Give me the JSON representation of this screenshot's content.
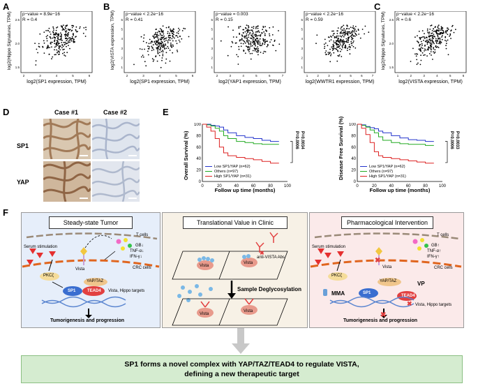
{
  "panels": {
    "A": "A",
    "B": "B",
    "C": "C",
    "D": "D",
    "E": "E",
    "F": "F"
  },
  "scatter": [
    {
      "id": "A1",
      "p": "p−value = 8.9e−16",
      "r": "R = 0.4",
      "xlabel": "log2(SP1 expression, TPM)",
      "ylabel": "log2(Hippo Signatures, TPM)",
      "xticks": [
        "2",
        "3",
        "4",
        "5",
        "6"
      ],
      "yticks": [
        "1.5",
        "2.0",
        "2.5"
      ]
    },
    {
      "id": "B1",
      "p": "p−value < 2.2e−16",
      "r": "R = 0.41",
      "xlabel": "log2(SP1 expression, TPM)",
      "ylabel": "log2(VISTA expression, TPM)",
      "xticks": [
        "2",
        "3",
        "4",
        "5",
        "6"
      ],
      "yticks": [
        "1",
        "2",
        "3",
        "4",
        "5",
        "6"
      ]
    },
    {
      "id": "B2",
      "p": "p−value = 0.003",
      "r": "R = 0.15",
      "xlabel": "log2(YAP1 expression, TPM)",
      "ylabel": "",
      "xticks": [
        "2",
        "3",
        "4",
        "5",
        "6",
        "7"
      ],
      "yticks": [
        "1",
        "2",
        "3",
        "4",
        "5",
        "6"
      ]
    },
    {
      "id": "B3",
      "p": "p−value < 2.2e−16",
      "r": "R = 0.59",
      "xlabel": "log2(WWTR1 expression, TPM)",
      "ylabel": "",
      "xticks": [
        "1",
        "2",
        "3",
        "4",
        "5",
        "6",
        "7"
      ],
      "yticks": [
        "1",
        "2",
        "3",
        "4",
        "5",
        "6"
      ]
    },
    {
      "id": "C1",
      "p": "p−value < 2.2e−16",
      "r": "R = 0.6",
      "xlabel": "log2(VISTA expression, TPM)",
      "ylabel": "log2(Hippo Signatures, TPM)",
      "xticks": [
        "1",
        "2",
        "3",
        "4",
        "5",
        "6"
      ],
      "yticks": [
        "1.5",
        "2.0",
        "2.5"
      ]
    }
  ],
  "ihc": {
    "case1": "Case #1",
    "case2": "Case #2",
    "row1": "SP1",
    "row2": "YAP"
  },
  "km": [
    {
      "ylabel": "Overall Survival (%)",
      "xlabel": "Follow up time (months)",
      "pvals": [
        "P=0.0006",
        "P=0.0034"
      ]
    },
    {
      "ylabel": "Disease Free Survival (%)",
      "xlabel": "Follow up time (months)",
      "pvals": [
        "P=0.0006",
        "P=0.0033"
      ]
    }
  ],
  "km_legend": [
    "Low SP1/YAP (n=62)",
    "Others (n=97)",
    "High SP1/YAP (n=31)"
  ],
  "km_xticks": [
    "0",
    "20",
    "40",
    "60",
    "80",
    "100"
  ],
  "km_yticks": [
    "0",
    "20",
    "40",
    "60",
    "80",
    "100"
  ],
  "chart_data": [
    {
      "type": "scatter",
      "title": "A",
      "xlabel": "log2(SP1 expression, TPM)",
      "ylabel": "log2(Hippo Signatures, TPM)",
      "r": 0.4,
      "xlim": [
        2,
        6
      ],
      "ylim": [
        1.2,
        2.8
      ]
    },
    {
      "type": "scatter",
      "title": "B left",
      "xlabel": "log2(SP1 expression, TPM)",
      "ylabel": "log2(VISTA expression, TPM)",
      "r": 0.41,
      "xlim": [
        2,
        6
      ],
      "ylim": [
        0,
        7
      ]
    },
    {
      "type": "scatter",
      "title": "B middle",
      "xlabel": "log2(YAP1 expression, TPM)",
      "r": 0.15,
      "xlim": [
        2,
        7
      ],
      "ylim": [
        0,
        7
      ]
    },
    {
      "type": "scatter",
      "title": "B right",
      "xlabel": "log2(WWTR1 expression, TPM)",
      "r": 0.59,
      "xlim": [
        1,
        7
      ],
      "ylim": [
        0,
        7
      ]
    },
    {
      "type": "scatter",
      "title": "C",
      "xlabel": "log2(VISTA expression, TPM)",
      "ylabel": "log2(Hippo Signatures, TPM)",
      "r": 0.6,
      "xlim": [
        1,
        6
      ],
      "ylim": [
        1.2,
        2.8
      ]
    },
    {
      "type": "line",
      "title": "E Overall Survival",
      "xlabel": "Follow up time (months)",
      "ylabel": "Overall Survival (%)",
      "ylim": [
        0,
        100
      ],
      "xlim": [
        0,
        100
      ],
      "series": [
        {
          "name": "Low SP1/YAP (n=62)",
          "color": "#2233cc",
          "x": [
            0,
            5,
            10,
            15,
            20,
            25,
            30,
            40,
            50,
            60,
            70,
            80,
            90
          ],
          "values": [
            100,
            100,
            98,
            97,
            95,
            90,
            85,
            80,
            77,
            75,
            72,
            70,
            70
          ]
        },
        {
          "name": "Others (n=97)",
          "color": "#22aa22",
          "x": [
            0,
            5,
            10,
            15,
            20,
            25,
            30,
            40,
            50,
            60,
            70,
            80,
            90
          ],
          "values": [
            100,
            99,
            97,
            93,
            88,
            80,
            75,
            70,
            68,
            66,
            65,
            65,
            65
          ]
        },
        {
          "name": "High SP1/YAP (n=31)",
          "color": "#dd2222",
          "x": [
            0,
            5,
            10,
            15,
            20,
            25,
            30,
            40,
            50,
            60,
            70,
            80,
            90
          ],
          "values": [
            100,
            95,
            88,
            75,
            60,
            50,
            45,
            42,
            40,
            38,
            35,
            32,
            32
          ]
        }
      ]
    },
    {
      "type": "line",
      "title": "E Disease Free Survival",
      "xlabel": "Follow up time (months)",
      "ylabel": "Disease Free Survival (%)",
      "ylim": [
        0,
        100
      ],
      "xlim": [
        0,
        100
      ],
      "series": [
        {
          "name": "Low SP1/YAP (n=62)",
          "color": "#2233cc",
          "x": [
            0,
            5,
            10,
            15,
            20,
            25,
            30,
            40,
            50,
            60,
            70,
            80,
            90
          ],
          "values": [
            100,
            99,
            96,
            94,
            92,
            88,
            85,
            80,
            76,
            73,
            72,
            70,
            70
          ]
        },
        {
          "name": "Others (n=97)",
          "color": "#22aa22",
          "x": [
            0,
            5,
            10,
            15,
            20,
            25,
            30,
            40,
            50,
            60,
            70,
            80,
            90
          ],
          "values": [
            100,
            98,
            95,
            90,
            85,
            78,
            72,
            68,
            66,
            65,
            65,
            63,
            63
          ]
        },
        {
          "name": "High SP1/YAP (n=31)",
          "color": "#dd2222",
          "x": [
            0,
            5,
            10,
            15,
            20,
            25,
            30,
            40,
            50,
            60,
            70,
            80,
            90
          ],
          "values": [
            100,
            93,
            82,
            68,
            52,
            45,
            42,
            40,
            38,
            36,
            34,
            32,
            32
          ]
        }
      ]
    }
  ],
  "schema": {
    "left": {
      "title": "Steady-state Tumor",
      "tcells": "T cells",
      "crc": "CRC cells",
      "serum": "Serum stimulation",
      "vista": "Vista",
      "pkc": "PKCζ",
      "yaptaz": "YAP/TAZ",
      "sp1": "SP1",
      "tead4": "TEAD4",
      "targets": "Vista, Hippo targets",
      "gb": "GB↓",
      "tnf": "TNF-α↓",
      "ifn": "IFN-γ↓",
      "outcome": "Tumorigenesis and progression"
    },
    "middle": {
      "title": "Translational Value in Clinic",
      "abs": "anti-VISTA Abs",
      "vista": "Vista",
      "degly": "Sample Deglycosylation"
    },
    "right": {
      "title": "Pharmacological Intervention",
      "tcells": "T cells",
      "crc": "CRC cells",
      "serum": "Serum stimulation",
      "vista": "Vista",
      "pkc": "PKCζ",
      "yaptaz": "YAP/TAZ",
      "vp": "VP",
      "sp1": "SP1",
      "tead4": "TEAD4",
      "mma": "MMA",
      "targets": "Vista, Hippo targets",
      "gb": "GB↑",
      "tnf": "TNF-α↑",
      "ifn": "IFN-γ↑",
      "outcome": "Tumorigenesis and progression"
    },
    "conclusion_line1": "SP1 forms a novel complex with YAP/TAZ/TEAD4 to regulate VISTA,",
    "conclusion_line2": "defining a new therapeutic target"
  }
}
